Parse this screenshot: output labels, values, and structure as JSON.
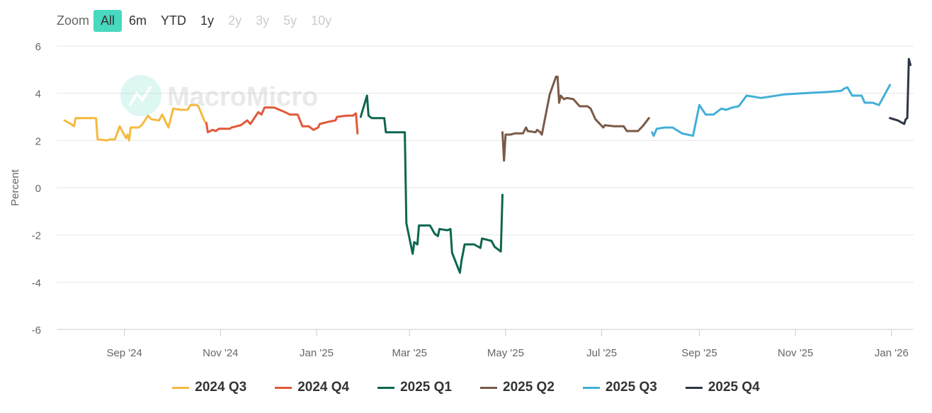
{
  "zoom": {
    "label": "Zoom",
    "buttons": [
      {
        "label": "All",
        "state": "active"
      },
      {
        "label": "6m",
        "state": "enabled"
      },
      {
        "label": "YTD",
        "state": "enabled"
      },
      {
        "label": "1y",
        "state": "enabled"
      },
      {
        "label": "2y",
        "state": "disabled"
      },
      {
        "label": "3y",
        "state": "disabled"
      },
      {
        "label": "5y",
        "state": "disabled"
      },
      {
        "label": "10y",
        "state": "disabled"
      }
    ]
  },
  "watermark": {
    "text": "MacroMicro"
  },
  "colors": {
    "accent": "#49d8c0",
    "grid": "#e6e6e6",
    "axis_text": "#666666"
  },
  "chart_data": {
    "type": "line",
    "title": "",
    "xlabel": "",
    "ylabel": "Percent",
    "ylim": [
      -6,
      6
    ],
    "yticks": [
      -6,
      -4,
      -2,
      0,
      2,
      4,
      6
    ],
    "xlim": [
      "2024-07-20",
      "2026-01-15"
    ],
    "xticks": [
      {
        "date": "2024-09-01",
        "label": "Sep '24"
      },
      {
        "date": "2024-11-01",
        "label": "Nov '24"
      },
      {
        "date": "2025-01-01",
        "label": "Jan '25"
      },
      {
        "date": "2025-03-01",
        "label": "Mar '25"
      },
      {
        "date": "2025-05-01",
        "label": "May '25"
      },
      {
        "date": "2025-07-01",
        "label": "Jul '25"
      },
      {
        "date": "2025-09-01",
        "label": "Sep '25"
      },
      {
        "date": "2025-11-01",
        "label": "Nov '25"
      },
      {
        "date": "2026-01-01",
        "label": "Jan '26"
      }
    ],
    "grid": "horizontal",
    "legend_position": "bottom-center",
    "series": [
      {
        "name": "2024 Q3",
        "color": "#f5b940",
        "points": [
          [
            "2024-07-25",
            2.85
          ],
          [
            "2024-07-29",
            2.7
          ],
          [
            "2024-07-31",
            2.6
          ],
          [
            "2024-08-01",
            2.95
          ],
          [
            "2024-08-08",
            2.95
          ],
          [
            "2024-08-12",
            2.95
          ],
          [
            "2024-08-14",
            2.95
          ],
          [
            "2024-08-15",
            2.05
          ],
          [
            "2024-08-21",
            2.0
          ],
          [
            "2024-08-23",
            2.05
          ],
          [
            "2024-08-26",
            2.05
          ],
          [
            "2024-08-29",
            2.6
          ],
          [
            "2024-09-02",
            2.1
          ],
          [
            "2024-09-03",
            2.25
          ],
          [
            "2024-09-04",
            2.0
          ],
          [
            "2024-09-05",
            2.55
          ],
          [
            "2024-09-10",
            2.55
          ],
          [
            "2024-09-12",
            2.65
          ],
          [
            "2024-09-16",
            3.05
          ],
          [
            "2024-09-18",
            2.9
          ],
          [
            "2024-09-23",
            2.85
          ],
          [
            "2024-09-25",
            3.1
          ],
          [
            "2024-09-29",
            2.55
          ],
          [
            "2024-10-02",
            3.35
          ],
          [
            "2024-10-07",
            3.3
          ],
          [
            "2024-10-11",
            3.3
          ],
          [
            "2024-10-13",
            3.5
          ],
          [
            "2024-10-17",
            3.5
          ],
          [
            "2024-10-18",
            3.45
          ],
          [
            "2024-10-22",
            2.8
          ]
        ]
      },
      {
        "name": "2024 Q4",
        "color": "#e0593a",
        "points": [
          [
            "2024-10-23",
            2.75
          ],
          [
            "2024-10-24",
            2.35
          ],
          [
            "2024-10-27",
            2.45
          ],
          [
            "2024-10-29",
            2.4
          ],
          [
            "2024-10-31",
            2.5
          ],
          [
            "2024-11-07",
            2.5
          ],
          [
            "2024-11-08",
            2.55
          ],
          [
            "2024-11-14",
            2.65
          ],
          [
            "2024-11-18",
            2.85
          ],
          [
            "2024-11-20",
            2.7
          ],
          [
            "2024-11-22",
            2.9
          ],
          [
            "2024-11-25",
            3.2
          ],
          [
            "2024-11-27",
            3.1
          ],
          [
            "2024-11-29",
            3.4
          ],
          [
            "2024-12-05",
            3.4
          ],
          [
            "2024-12-12",
            3.2
          ],
          [
            "2024-12-15",
            3.1
          ],
          [
            "2024-12-20",
            3.1
          ],
          [
            "2024-12-23",
            2.6
          ],
          [
            "2024-12-27",
            2.6
          ],
          [
            "2024-12-30",
            2.45
          ],
          [
            "2025-01-02",
            2.55
          ],
          [
            "2025-01-03",
            2.7
          ],
          [
            "2025-01-09",
            2.8
          ],
          [
            "2025-01-13",
            2.85
          ],
          [
            "2025-01-14",
            3.0
          ],
          [
            "2025-01-20",
            3.05
          ],
          [
            "2025-01-24",
            3.05
          ],
          [
            "2025-01-26",
            3.15
          ],
          [
            "2025-01-27",
            2.3
          ]
        ]
      },
      {
        "name": "2025 Q1",
        "color": "#0d6650",
        "points": [
          [
            "2025-01-29",
            3.0
          ],
          [
            "2025-02-02",
            3.9
          ],
          [
            "2025-02-03",
            3.05
          ],
          [
            "2025-02-05",
            2.95
          ],
          [
            "2025-02-13",
            2.95
          ],
          [
            "2025-02-14",
            2.35
          ],
          [
            "2025-02-26",
            2.35
          ],
          [
            "2025-02-27",
            -1.5
          ],
          [
            "2025-03-03",
            -2.8
          ],
          [
            "2025-03-04",
            -2.3
          ],
          [
            "2025-03-06",
            -2.4
          ],
          [
            "2025-03-07",
            -1.6
          ],
          [
            "2025-03-14",
            -1.6
          ],
          [
            "2025-03-17",
            -1.95
          ],
          [
            "2025-03-19",
            -2.05
          ],
          [
            "2025-03-20",
            -1.75
          ],
          [
            "2025-03-25",
            -1.8
          ],
          [
            "2025-03-27",
            -1.75
          ],
          [
            "2025-03-28",
            -2.75
          ],
          [
            "2025-04-02",
            -3.6
          ],
          [
            "2025-04-03",
            -3.1
          ],
          [
            "2025-04-05",
            -2.4
          ],
          [
            "2025-04-11",
            -2.4
          ],
          [
            "2025-04-15",
            -2.55
          ],
          [
            "2025-04-16",
            -2.15
          ],
          [
            "2025-04-22",
            -2.25
          ],
          [
            "2025-04-24",
            -2.5
          ],
          [
            "2025-04-28",
            -2.7
          ],
          [
            "2025-04-29",
            -0.3
          ]
        ]
      },
      {
        "name": "2025 Q2",
        "color": "#7a5a48",
        "points": [
          [
            "2025-04-29",
            2.35
          ],
          [
            "2025-04-30",
            1.15
          ],
          [
            "2025-05-01",
            2.25
          ],
          [
            "2025-05-04",
            2.25
          ],
          [
            "2025-05-07",
            2.3
          ],
          [
            "2025-05-12",
            2.3
          ],
          [
            "2025-05-14",
            2.55
          ],
          [
            "2025-05-15",
            2.4
          ],
          [
            "2025-05-20",
            2.35
          ],
          [
            "2025-05-21",
            2.45
          ],
          [
            "2025-05-23",
            2.35
          ],
          [
            "2025-05-24",
            2.25
          ],
          [
            "2025-05-29",
            3.95
          ],
          [
            "2025-06-02",
            4.7
          ],
          [
            "2025-06-03",
            4.7
          ],
          [
            "2025-06-04",
            3.6
          ],
          [
            "2025-06-05",
            3.9
          ],
          [
            "2025-06-07",
            3.75
          ],
          [
            "2025-06-09",
            3.8
          ],
          [
            "2025-06-13",
            3.75
          ],
          [
            "2025-06-17",
            3.45
          ],
          [
            "2025-06-22",
            3.45
          ],
          [
            "2025-06-24",
            3.35
          ],
          [
            "2025-06-27",
            2.9
          ],
          [
            "2025-07-02",
            2.55
          ],
          [
            "2025-07-03",
            2.65
          ],
          [
            "2025-07-09",
            2.6
          ],
          [
            "2025-07-11",
            2.6
          ],
          [
            "2025-07-15",
            2.6
          ],
          [
            "2025-07-17",
            2.4
          ],
          [
            "2025-07-24",
            2.4
          ],
          [
            "2025-07-27",
            2.6
          ],
          [
            "2025-07-31",
            2.95
          ]
        ]
      },
      {
        "name": "2025 Q3",
        "color": "#42afd8",
        "points": [
          [
            "2025-08-02",
            2.35
          ],
          [
            "2025-08-03",
            2.2
          ],
          [
            "2025-08-05",
            2.5
          ],
          [
            "2025-08-10",
            2.55
          ],
          [
            "2025-08-15",
            2.55
          ],
          [
            "2025-08-21",
            2.3
          ],
          [
            "2025-08-28",
            2.2
          ],
          [
            "2025-09-01",
            3.5
          ],
          [
            "2025-09-05",
            3.1
          ],
          [
            "2025-09-10",
            3.1
          ],
          [
            "2025-09-15",
            3.35
          ],
          [
            "2025-09-18",
            3.3
          ],
          [
            "2025-09-22",
            3.4
          ],
          [
            "2025-09-26",
            3.45
          ],
          [
            "2025-10-01",
            3.9
          ],
          [
            "2025-10-06",
            3.85
          ],
          [
            "2025-10-10",
            3.8
          ],
          [
            "2025-10-25",
            3.95
          ],
          [
            "2025-11-05",
            4.0
          ],
          [
            "2025-11-20",
            4.05
          ],
          [
            "2025-11-30",
            4.1
          ],
          [
            "2025-12-02",
            4.2
          ],
          [
            "2025-12-04",
            4.25
          ],
          [
            "2025-12-07",
            3.9
          ],
          [
            "2025-12-13",
            3.9
          ],
          [
            "2025-12-15",
            3.6
          ],
          [
            "2025-12-20",
            3.6
          ],
          [
            "2025-12-24",
            3.5
          ],
          [
            "2025-12-31",
            4.35
          ]
        ]
      },
      {
        "name": "2025 Q4",
        "color": "#2e3545",
        "points": [
          [
            "2025-12-31",
            2.95
          ],
          [
            "2026-01-05",
            2.85
          ],
          [
            "2026-01-09",
            2.7
          ],
          [
            "2026-01-10",
            2.9
          ],
          [
            "2026-01-11",
            2.95
          ],
          [
            "2026-01-12",
            5.45
          ],
          [
            "2026-01-13",
            5.2
          ]
        ]
      }
    ]
  }
}
